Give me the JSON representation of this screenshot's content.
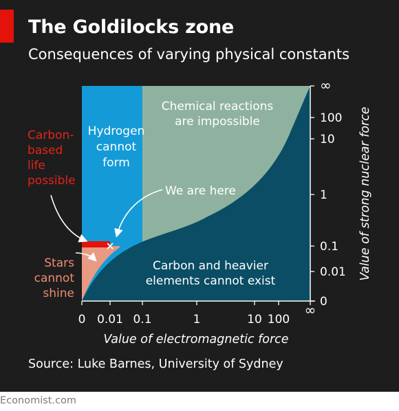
{
  "header": {
    "title": "The Goldilocks zone",
    "subtitle": "Consequences of varying physical constants"
  },
  "footer": {
    "source": "Source: Luke Barnes, University of Sydney",
    "brand": "Economist.com"
  },
  "colors": {
    "background": "#1d1d1d",
    "accent": "#e3120b",
    "hydrogen_region": "#149bd7",
    "chemical_region": "#8fb2a0",
    "carbon_region": "#0a4d64",
    "stars_region": "#e99a82",
    "life_band": "#e3120b"
  },
  "chart_data": {
    "type": "area",
    "xlabel": "Value of electromagnetic force",
    "ylabel": "Value of strong nuclear force",
    "x_ticks": [
      "0",
      "0.01",
      "0.1",
      "1",
      "10",
      "100",
      "∞"
    ],
    "y_ticks": [
      "0",
      "0.01",
      "0.1",
      "1",
      "10",
      "100",
      "∞"
    ],
    "regions": [
      {
        "name": "Hydrogen cannot form",
        "label_lines": [
          "Hydrogen",
          "cannot",
          "form"
        ]
      },
      {
        "name": "Chemical reactions are impossible",
        "label_lines": [
          "Chemical reactions",
          "are impossible"
        ]
      },
      {
        "name": "Carbon and heavier elements cannot exist",
        "label_lines": [
          "Carbon and heavier",
          "elements cannot exist"
        ]
      },
      {
        "name": "Stars cannot shine",
        "label_lines": [
          "Stars",
          "cannot",
          "shine"
        ]
      },
      {
        "name": "Carbon-based life possible",
        "label_lines": [
          "Carbon-",
          "based",
          "life",
          "possible"
        ]
      }
    ],
    "annotations": [
      {
        "text": "We are here",
        "x": 0.01,
        "y": 0.1
      }
    ],
    "boundaries": {
      "hydrogen_x_max": 0.1,
      "life_band_y": 0.1,
      "life_band_x_max": 0.01
    }
  }
}
